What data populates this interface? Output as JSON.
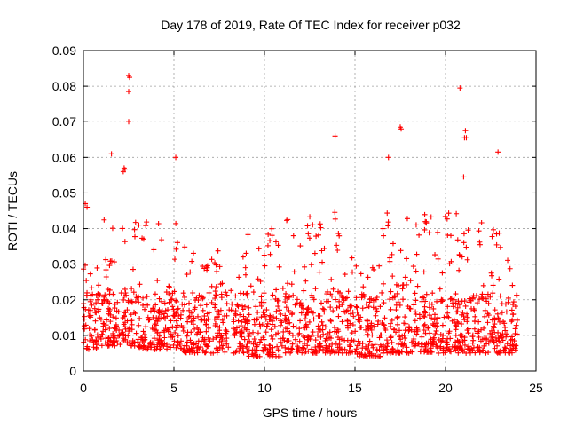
{
  "chart_data": {
    "type": "scatter",
    "title": "Day 178 of 2019, Rate Of TEC Index for receiver p032",
    "xlabel": "GPS time / hours",
    "ylabel": "ROTI / TECUs",
    "xlim": [
      0,
      25
    ],
    "ylim": [
      0,
      0.09
    ],
    "x_ticks": [
      0,
      5,
      10,
      15,
      20,
      25
    ],
    "x_tick_labels": [
      "0",
      "5",
      "10",
      "15",
      "20",
      "25"
    ],
    "y_ticks": [
      0,
      0.01,
      0.02,
      0.03,
      0.04,
      0.05,
      0.06,
      0.07,
      0.08,
      0.09
    ],
    "y_tick_labels": [
      "0",
      "0.01",
      "0.02",
      "0.03",
      "0.04",
      "0.05",
      "0.06",
      "0.07",
      "0.08",
      "0.09"
    ],
    "grid": true,
    "marker": "plus",
    "color": "#ff0000",
    "x_data_range": [
      0,
      24
    ],
    "notable_points": [
      {
        "x": 2.5,
        "y": 0.083
      },
      {
        "x": 2.55,
        "y": 0.0825
      },
      {
        "x": 2.5,
        "y": 0.0785
      },
      {
        "x": 2.5,
        "y": 0.07
      },
      {
        "x": 20.8,
        "y": 0.0795
      },
      {
        "x": 17.5,
        "y": 0.0685
      },
      {
        "x": 17.55,
        "y": 0.068
      },
      {
        "x": 21.1,
        "y": 0.0675
      },
      {
        "x": 21.05,
        "y": 0.0655
      },
      {
        "x": 21.15,
        "y": 0.0655
      },
      {
        "x": 13.9,
        "y": 0.066
      },
      {
        "x": 1.55,
        "y": 0.061
      },
      {
        "x": 22.9,
        "y": 0.0615
      },
      {
        "x": 16.85,
        "y": 0.06
      },
      {
        "x": 5.1,
        "y": 0.06
      },
      {
        "x": 2.25,
        "y": 0.057
      },
      {
        "x": 2.2,
        "y": 0.056
      },
      {
        "x": 2.3,
        "y": 0.0565
      },
      {
        "x": 21.0,
        "y": 0.0545
      },
      {
        "x": 0.1,
        "y": 0.047
      },
      {
        "x": 0.2,
        "y": 0.046
      }
    ],
    "bands": [
      {
        "x_start": 0.0,
        "x_end": 1.0,
        "y_low": 0.006,
        "y_high": 0.03
      },
      {
        "x_start": 1.0,
        "x_end": 3.0,
        "y_low": 0.007,
        "y_high": 0.045
      },
      {
        "x_start": 3.0,
        "x_end": 5.5,
        "y_low": 0.006,
        "y_high": 0.045
      },
      {
        "x_start": 5.5,
        "x_end": 9.0,
        "y_low": 0.005,
        "y_high": 0.035
      },
      {
        "x_start": 9.0,
        "x_end": 11.0,
        "y_low": 0.004,
        "y_high": 0.04
      },
      {
        "x_start": 11.0,
        "x_end": 15.0,
        "y_low": 0.005,
        "y_high": 0.045
      },
      {
        "x_start": 15.0,
        "x_end": 16.5,
        "y_low": 0.004,
        "y_high": 0.03
      },
      {
        "x_start": 16.5,
        "x_end": 19.0,
        "y_low": 0.005,
        "y_high": 0.045
      },
      {
        "x_start": 19.0,
        "x_end": 22.5,
        "y_low": 0.005,
        "y_high": 0.045
      },
      {
        "x_start": 22.5,
        "x_end": 24.0,
        "y_low": 0.005,
        "y_high": 0.04
      }
    ]
  }
}
